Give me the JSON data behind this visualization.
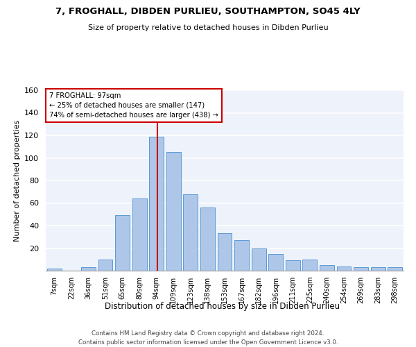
{
  "title1": "7, FROGHALL, DIBDEN PURLIEU, SOUTHAMPTON, SO45 4LY",
  "title2": "Size of property relative to detached houses in Dibden Purlieu",
  "xlabel": "Distribution of detached houses by size in Dibden Purlieu",
  "ylabel": "Number of detached properties",
  "categories": [
    "7sqm",
    "22sqm",
    "36sqm",
    "51sqm",
    "65sqm",
    "80sqm",
    "94sqm",
    "109sqm",
    "123sqm",
    "138sqm",
    "153sqm",
    "167sqm",
    "182sqm",
    "196sqm",
    "211sqm",
    "225sqm",
    "240sqm",
    "254sqm",
    "269sqm",
    "283sqm",
    "298sqm"
  ],
  "values": [
    2,
    0,
    3,
    10,
    49,
    64,
    119,
    105,
    68,
    56,
    33,
    27,
    20,
    15,
    9,
    10,
    5,
    4,
    3,
    3,
    3
  ],
  "bar_color": "#aec6e8",
  "bar_edge_color": "#5b9bd5",
  "property_label": "7 FROGHALL: 97sqm",
  "annotation_line1": "← 25% of detached houses are smaller (147)",
  "annotation_line2": "74% of semi-detached houses are larger (438) →",
  "vline_x_index": 6,
  "vline_color": "#cc0000",
  "annotation_box_color": "#cc0000",
  "ylim": [
    0,
    160
  ],
  "yticks": [
    0,
    20,
    40,
    60,
    80,
    100,
    120,
    140,
    160
  ],
  "background_color": "#eef2fb",
  "grid_color": "#ffffff",
  "footnote1": "Contains HM Land Registry data © Crown copyright and database right 2024.",
  "footnote2": "Contains public sector information licensed under the Open Government Licence v3.0."
}
